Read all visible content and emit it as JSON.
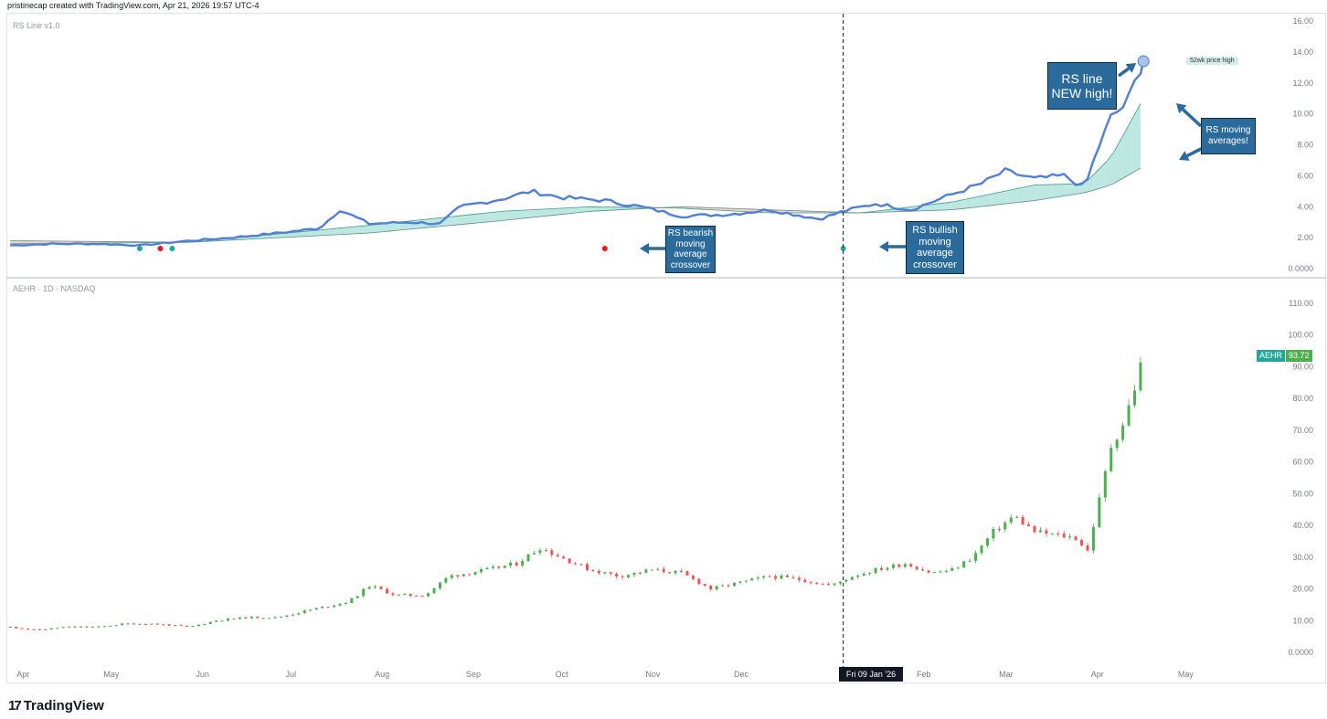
{
  "header": {
    "attribution": "pristinecap created with TradingView.com, Apr 21, 2026 19:57 UTC-4"
  },
  "rs_pane": {
    "label": "RS Line v1.0",
    "y_ticks": [
      "16.00",
      "14.00",
      "12.00",
      "10.00",
      "8.00",
      "6.00",
      "4.00",
      "2.00",
      "0.0000"
    ],
    "high_label": "52wk price high"
  },
  "price_pane": {
    "label": "AEHR · 1D · NASDAQ",
    "y_ticks": [
      "110.00",
      "100.00",
      "90.00",
      "80.00",
      "70.00",
      "60.00",
      "50.00",
      "40.00",
      "30.00",
      "20.00",
      "10.00",
      "0.0000"
    ],
    "badge_symbol": "AEHR",
    "badge_price": "93.72",
    "badge_color": "#26a69a"
  },
  "x_axis": {
    "months": [
      "Apr",
      "May",
      "Jun",
      "Jul",
      "Aug",
      "Sep",
      "Oct",
      "Nov",
      "Dec",
      "Feb",
      "Mar",
      "Apr",
      "May"
    ],
    "crosshair_label": "Fri 09 Jan '26"
  },
  "annotations": {
    "rs_new_high": [
      "RS line",
      "NEW high!"
    ],
    "rs_moving_averages": [
      "RS moving",
      "averages!"
    ],
    "bearish_crossover": [
      "RS bearish",
      "moving",
      "average",
      "crossover"
    ],
    "bullish_crossover": [
      "RS bullish",
      "moving",
      "average",
      "crossover"
    ]
  },
  "brand": {
    "name": "TradingView",
    "mark": "17"
  },
  "colors": {
    "rs_line": "#4f7fd6",
    "ma_fill_bull": "#b2e3dc",
    "ma_fill_bear": "#f5c6c6",
    "up": "#26a69a",
    "up_candle": "#4caf50",
    "down": "#ef5350",
    "callout": "#2b6b9b"
  },
  "chart_data": [
    {
      "type": "line",
      "title": "RS Line v1.0",
      "ylim": [
        0,
        16
      ],
      "x_range": [
        "2025-03-31",
        "2026-05-31"
      ],
      "series": [
        {
          "name": "RS Line v1.0",
          "x": [
            "2025-04-01",
            "2025-04-15",
            "2025-05-01",
            "2025-05-15",
            "2025-06-01",
            "2025-06-15",
            "2025-07-01",
            "2025-07-15",
            "2025-07-22",
            "2025-08-01",
            "2025-08-15",
            "2025-08-25",
            "2025-09-01",
            "2025-09-15",
            "2025-09-25",
            "2025-10-05",
            "2025-10-20",
            "2025-11-01",
            "2025-11-15",
            "2025-12-01",
            "2025-12-15",
            "2026-01-01",
            "2026-01-09",
            "2026-01-20",
            "2026-02-01",
            "2026-02-15",
            "2026-02-25",
            "2026-03-05",
            "2026-03-15",
            "2026-03-25",
            "2026-04-01",
            "2026-04-05",
            "2026-04-10",
            "2026-04-15",
            "2026-04-21"
          ],
          "values": [
            1.5,
            1.6,
            1.6,
            1.5,
            1.8,
            2.0,
            2.3,
            2.6,
            3.8,
            2.9,
            3.0,
            2.9,
            4.0,
            4.5,
            5.0,
            4.6,
            4.4,
            4.0,
            3.4,
            3.5,
            3.8,
            3.2,
            3.7,
            4.2,
            3.8,
            4.8,
            5.5,
            6.3,
            5.8,
            6.0,
            5.2,
            7.5,
            9.8,
            10.6,
            13.4
          ]
        },
        {
          "x": [
            "2025-04-01",
            "2025-06-01",
            "2025-08-01",
            "2025-09-15",
            "2025-10-15",
            "2025-11-15",
            "2025-12-15",
            "2026-01-15",
            "2026-02-15",
            "2026-03-15",
            "2026-04-01",
            "2026-04-10",
            "2026-04-21"
          ],
          "values": [
            1.6,
            1.7,
            2.8,
            3.7,
            4.0,
            3.9,
            3.6,
            3.6,
            4.3,
            5.4,
            5.5,
            7.2,
            11.0
          ]
        },
        {
          "x": [
            "2025-04-01",
            "2025-06-01",
            "2025-08-01",
            "2025-09-15",
            "2025-10-15",
            "2025-11-15",
            "2025-12-15",
            "2026-01-15",
            "2026-02-15",
            "2026-03-15",
            "2026-04-01",
            "2026-04-10",
            "2026-04-21"
          ],
          "values": [
            1.8,
            1.7,
            2.3,
            3.1,
            3.7,
            4.0,
            3.8,
            3.6,
            3.8,
            4.4,
            4.9,
            5.4,
            6.6
          ]
        }
      ],
      "markers": [
        {
          "x": "2025-05-15",
          "y": 1.3,
          "kind": "bullish"
        },
        {
          "x": "2025-05-22",
          "y": 1.3,
          "kind": "bearish"
        },
        {
          "x": "2025-05-26",
          "y": 1.3,
          "kind": "bullish"
        },
        {
          "x": "2025-10-20",
          "y": 1.3,
          "kind": "bearish"
        },
        {
          "x": "2026-01-09",
          "y": 1.3,
          "kind": "bullish"
        }
      ]
    },
    {
      "type": "candlestick",
      "title": "AEHR · 1D · NASDAQ",
      "ylim": [
        0,
        113
      ],
      "x_range": [
        "2025-03-31",
        "2026-05-31"
      ],
      "series": [
        {
          "name": "AEHR",
          "x": [
            "2025-04-01",
            "2025-04-10",
            "2025-04-20",
            "2025-05-01",
            "2025-05-10",
            "2025-05-20",
            "2025-06-01",
            "2025-06-10",
            "2025-06-20",
            "2025-07-01",
            "2025-07-10",
            "2025-07-20",
            "2025-07-25",
            "2025-08-01",
            "2025-08-10",
            "2025-08-20",
            "2025-08-28",
            "2025-09-10",
            "2025-09-20",
            "2025-09-28",
            "2025-10-05",
            "2025-10-15",
            "2025-10-25",
            "2025-11-05",
            "2025-11-15",
            "2025-11-25",
            "2025-12-05",
            "2025-12-15",
            "2025-12-25",
            "2026-01-05",
            "2026-01-12",
            "2026-01-20",
            "2026-01-30",
            "2026-02-08",
            "2026-02-15",
            "2026-02-22",
            "2026-03-01",
            "2026-03-08",
            "2026-03-15",
            "2026-03-22",
            "2026-03-29",
            "2026-04-02",
            "2026-04-06",
            "2026-04-10",
            "2026-04-14",
            "2026-04-17",
            "2026-04-21"
          ],
          "values": [
            8,
            7,
            8,
            8,
            9,
            9,
            8,
            10,
            11,
            11,
            13,
            15,
            16,
            21,
            18,
            18,
            24,
            26,
            28,
            33,
            30,
            26,
            24,
            26,
            25,
            20,
            22,
            24,
            23,
            21,
            24,
            26,
            28,
            25,
            26,
            30,
            38,
            43,
            38,
            37,
            36,
            32,
            48,
            65,
            72,
            80,
            93.72
          ]
        }
      ]
    }
  ]
}
